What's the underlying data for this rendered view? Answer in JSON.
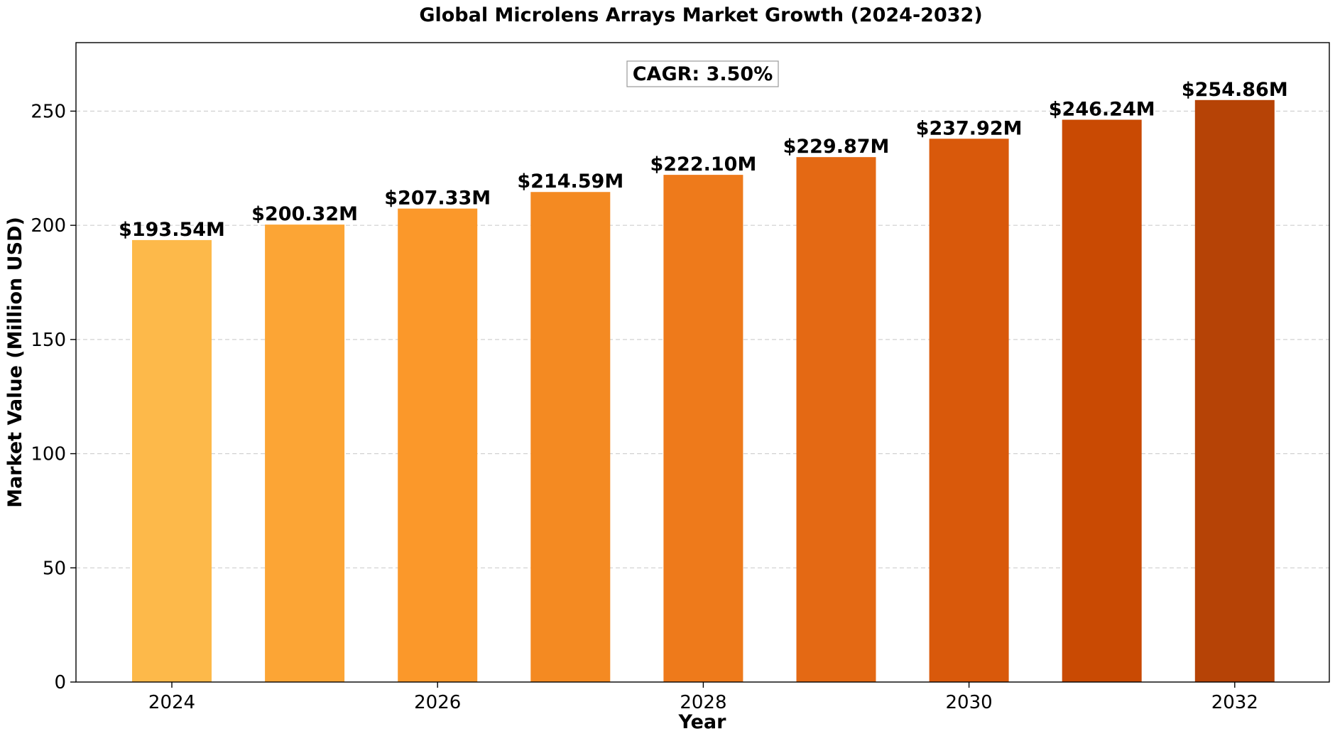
{
  "chart_data": {
    "type": "bar",
    "title": "Global Microlens Arrays Market Growth (2024-2032)",
    "xlabel": "Year",
    "ylabel": "Market Value (Million USD)",
    "categories": [
      "2024",
      "2025",
      "2026",
      "2027",
      "2028",
      "2029",
      "2030",
      "2031",
      "2032"
    ],
    "values": [
      193.54,
      200.32,
      207.33,
      214.59,
      222.1,
      229.87,
      237.92,
      246.24,
      254.86
    ],
    "value_labels": [
      "$193.54M",
      "$200.32M",
      "$207.33M",
      "$214.59M",
      "$222.10M",
      "$229.87M",
      "$237.92M",
      "$246.24M",
      "$254.86M"
    ],
    "x_tick_labels": [
      "2024",
      "2026",
      "2028",
      "2030",
      "2032"
    ],
    "y_ticks": [
      0,
      50,
      100,
      150,
      200,
      250
    ],
    "ylim": [
      0,
      280
    ],
    "grid": "horizontal dashed",
    "annotation": "CAGR: 3.50%",
    "bar_colors": [
      "#FDB94A",
      "#FCA535",
      "#FB982A",
      "#F48A22",
      "#EE7A1B",
      "#E46914",
      "#D9590B",
      "#C94A03",
      "#B64306"
    ]
  }
}
